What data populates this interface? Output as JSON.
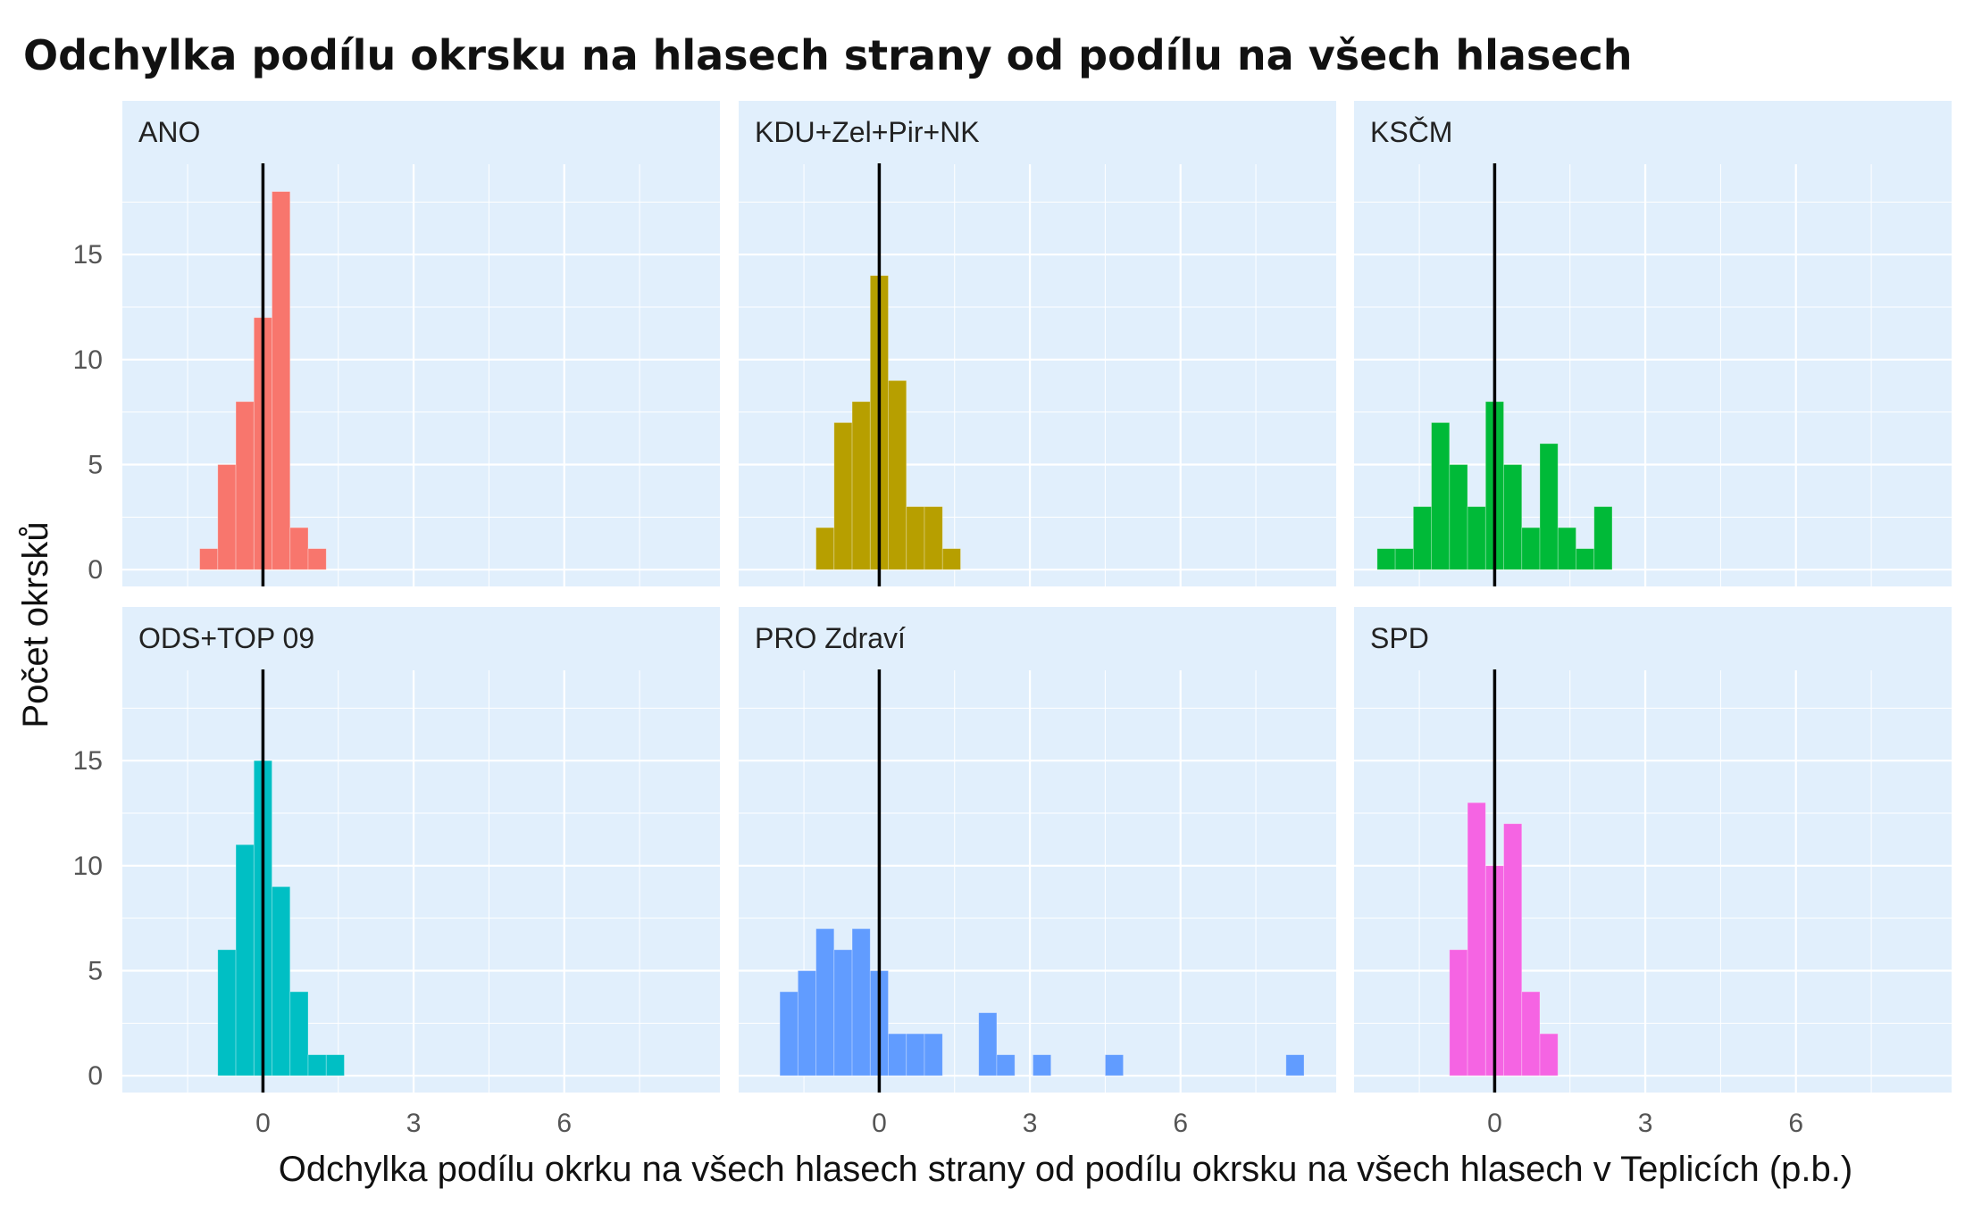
{
  "chart_data": {
    "type": "bar",
    "title": "Odchylka podílu okrsku na hlasech strany od podílu na všech hlasech",
    "xlabel": "Odchylka podílu okrku na všech hlasech strany od podílu okrsku na všech hlasech v Teplicích (p.b.)",
    "ylabel": "Počet okrsků",
    "xlim": [
      -2.8,
      9.1
    ],
    "ylim": [
      -0.8,
      19.3
    ],
    "x_ticks": [
      0,
      3,
      6
    ],
    "x_tick_labels": [
      "0",
      "3",
      "6"
    ],
    "y_ticks": [
      0,
      5,
      10,
      15
    ],
    "y_tick_labels": [
      "0",
      "5",
      "10",
      "15"
    ],
    "bin_width": 0.36,
    "reference_line_x": 0,
    "grid": true,
    "colors": {
      "panel_bg": "#e1effc",
      "grid": "#ffffff",
      "reference_line": "#000000"
    },
    "panels": [
      {
        "name": "ANO",
        "color": "#f8766d",
        "bins": [
          {
            "x0": -1.26,
            "count": 1
          },
          {
            "x0": -0.9,
            "count": 5
          },
          {
            "x0": -0.54,
            "count": 8
          },
          {
            "x0": -0.18,
            "count": 12
          },
          {
            "x0": 0.18,
            "count": 18
          },
          {
            "x0": 0.54,
            "count": 2
          },
          {
            "x0": 0.9,
            "count": 1
          }
        ]
      },
      {
        "name": "KDU+Zel+Pir+NK",
        "color": "#b79f00",
        "bins": [
          {
            "x0": -1.26,
            "count": 2
          },
          {
            "x0": -0.9,
            "count": 7
          },
          {
            "x0": -0.54,
            "count": 8
          },
          {
            "x0": -0.18,
            "count": 14
          },
          {
            "x0": 0.18,
            "count": 9
          },
          {
            "x0": 0.54,
            "count": 3
          },
          {
            "x0": 0.9,
            "count": 3
          },
          {
            "x0": 1.26,
            "count": 1
          }
        ]
      },
      {
        "name": "KSČM",
        "color": "#00ba38",
        "bins": [
          {
            "x0": -2.34,
            "count": 1
          },
          {
            "x0": -1.98,
            "count": 1
          },
          {
            "x0": -1.62,
            "count": 3
          },
          {
            "x0": -1.26,
            "count": 7
          },
          {
            "x0": -0.9,
            "count": 5
          },
          {
            "x0": -0.54,
            "count": 3
          },
          {
            "x0": -0.18,
            "count": 8
          },
          {
            "x0": 0.18,
            "count": 5
          },
          {
            "x0": 0.54,
            "count": 2
          },
          {
            "x0": 0.9,
            "count": 6
          },
          {
            "x0": 1.26,
            "count": 2
          },
          {
            "x0": 1.62,
            "count": 1
          },
          {
            "x0": 1.98,
            "count": 3
          }
        ]
      },
      {
        "name": "ODS+TOP 09",
        "color": "#00bfc4",
        "bins": [
          {
            "x0": -0.9,
            "count": 6
          },
          {
            "x0": -0.54,
            "count": 11
          },
          {
            "x0": -0.18,
            "count": 15
          },
          {
            "x0": 0.18,
            "count": 9
          },
          {
            "x0": 0.54,
            "count": 4
          },
          {
            "x0": 0.9,
            "count": 1
          },
          {
            "x0": 1.26,
            "count": 1
          }
        ]
      },
      {
        "name": "PRO Zdraví",
        "color": "#619cff",
        "bins": [
          {
            "x0": -1.98,
            "count": 4
          },
          {
            "x0": -1.62,
            "count": 5
          },
          {
            "x0": -1.26,
            "count": 7
          },
          {
            "x0": -0.9,
            "count": 6
          },
          {
            "x0": -0.54,
            "count": 7
          },
          {
            "x0": -0.18,
            "count": 5
          },
          {
            "x0": 0.18,
            "count": 2
          },
          {
            "x0": 0.54,
            "count": 2
          },
          {
            "x0": 0.9,
            "count": 2
          },
          {
            "x0": 1.98,
            "count": 3
          },
          {
            "x0": 2.34,
            "count": 1
          },
          {
            "x0": 3.06,
            "count": 1
          },
          {
            "x0": 4.5,
            "count": 1
          },
          {
            "x0": 8.1,
            "count": 1
          }
        ]
      },
      {
        "name": "SPD",
        "color": "#f564e3",
        "bins": [
          {
            "x0": -0.9,
            "count": 6
          },
          {
            "x0": -0.54,
            "count": 13
          },
          {
            "x0": -0.18,
            "count": 10
          },
          {
            "x0": 0.18,
            "count": 12
          },
          {
            "x0": 0.54,
            "count": 4
          },
          {
            "x0": 0.9,
            "count": 2
          }
        ]
      }
    ]
  }
}
